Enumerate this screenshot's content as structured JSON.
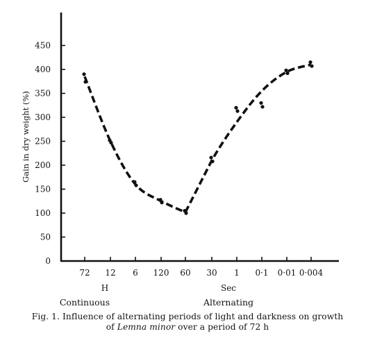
{
  "chart_data": {
    "type": "line",
    "ylabel": "Gain in dry weight (%)",
    "ylim": [
      0,
      475
    ],
    "yticks": [
      0,
      50,
      100,
      150,
      200,
      250,
      300,
      350,
      400,
      450
    ],
    "categories": [
      "72",
      "12",
      "6",
      "120",
      "60",
      "30",
      "1",
      "0·1",
      "0·01",
      "0·004"
    ],
    "unit_groups": [
      {
        "unit": "H",
        "category": "Continuous",
        "from": 0,
        "to": 2
      },
      {
        "unit": "Sec",
        "category": "Alternating",
        "from": 3,
        "to": 9
      }
    ],
    "curve": [
      385,
      250,
      160,
      125,
      102,
      210,
      290,
      355,
      395,
      410
    ],
    "series": [
      {
        "points": [
          [
            0,
            390
          ],
          [
            0,
            374
          ],
          [
            1,
            252
          ],
          [
            1,
            247
          ],
          [
            2,
            165
          ],
          [
            2,
            158
          ],
          [
            3,
            128
          ],
          [
            3,
            122
          ],
          [
            4,
            105
          ],
          [
            4,
            100
          ],
          [
            5,
            216
          ],
          [
            5,
            208
          ],
          [
            6,
            320
          ],
          [
            6,
            313
          ],
          [
            7,
            330
          ],
          [
            7,
            322
          ],
          [
            8,
            398
          ],
          [
            8,
            392
          ],
          [
            9,
            415
          ],
          [
            9,
            407
          ]
        ]
      }
    ],
    "line_style": "dashed",
    "grid": false
  },
  "caption": {
    "line1": "Fig. 1.  Influence of alternating periods of light and darkness on growth",
    "line2_pre": "of ",
    "line2_italic": "Lemna minor",
    "line2_post": " over a period of 72 h"
  }
}
